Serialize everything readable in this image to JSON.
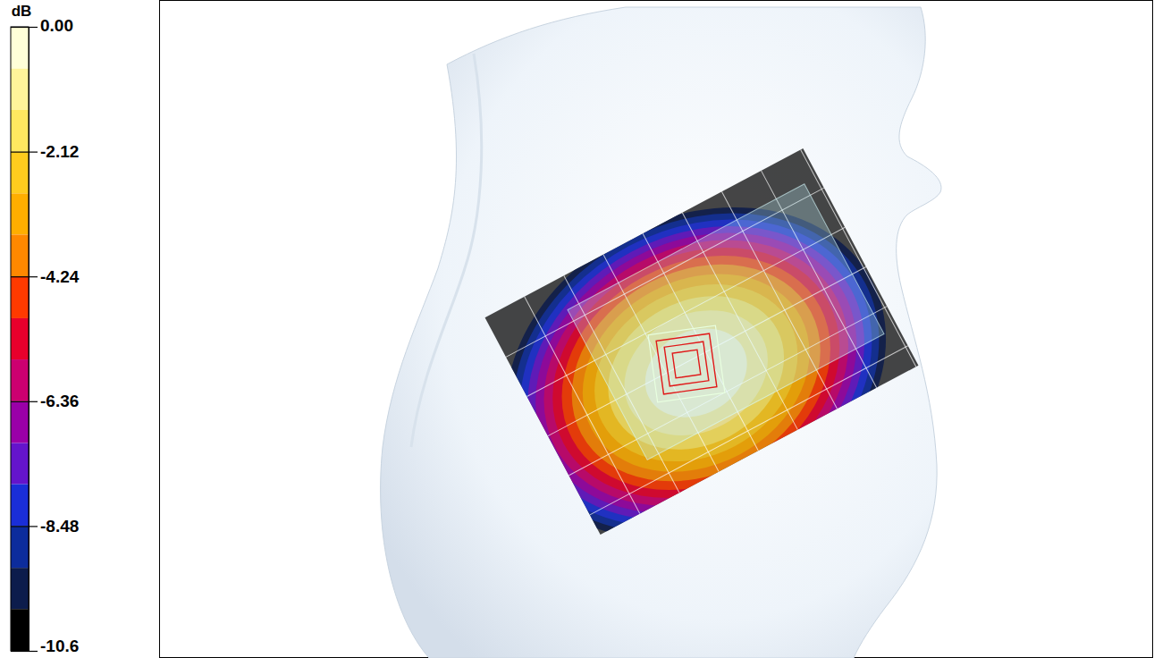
{
  "chart_data": {
    "type": "contour",
    "colorbar": {
      "title": "dB",
      "range": [
        -10.6,
        0
      ],
      "ticks": [
        {
          "value": 0,
          "label": "0.00"
        },
        -2.12,
        -4.24,
        -6.36,
        -8.48,
        -10.6
      ],
      "levels": [
        0,
        -0.71,
        -1.41,
        -2.12,
        -2.83,
        -3.53,
        -4.24,
        -4.95,
        -5.65,
        -6.36,
        -7.07,
        -7.77,
        -8.48,
        -9.19,
        -9.89,
        -10.6
      ],
      "colors": [
        "#ffffd8",
        "#fff49a",
        "#ffe860",
        "#ffcc1e",
        "#ffae00",
        "#ff8800",
        "#ff3a00",
        "#e8002c",
        "#cc0070",
        "#9a00a8",
        "#6414cc",
        "#1a2ed8",
        "#0c2c9c",
        "#0c1c4c",
        "#000000"
      ]
    }
  }
}
